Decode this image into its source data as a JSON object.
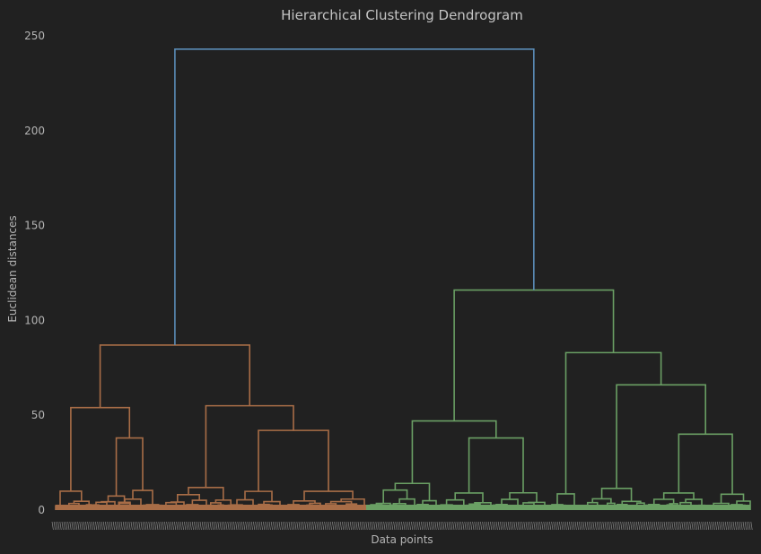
{
  "chart_data": {
    "type": "dendrogram",
    "title": "Hierarchical Clustering Dendrogram",
    "xlabel": "Data points",
    "ylabel": "Euclidean distances",
    "ylim": [
      0,
      250
    ],
    "yticks": [
      0,
      50,
      100,
      150,
      200,
      250
    ],
    "grid": false,
    "colors": {
      "background": "#212121",
      "root_link": "#5b8db8",
      "cluster_1": "#a86d47",
      "cluster_2": "#6a9f64",
      "leaf_labels": "#8c8c8c"
    },
    "merges": [
      {
        "name": "root",
        "height": 243,
        "color": "root_link",
        "children": [
          "c1",
          "c2"
        ]
      },
      {
        "name": "c1",
        "height": 87,
        "color": "cluster_1",
        "children": [
          "c1a",
          "c1b"
        ]
      },
      {
        "name": "c1a",
        "height": 54,
        "color": "cluster_1",
        "children": [
          "c1a1",
          "c1a2"
        ]
      },
      {
        "name": "c1a2",
        "height": 38,
        "color": "cluster_1"
      },
      {
        "name": "c1b",
        "height": 55,
        "color": "cluster_1",
        "children": [
          "c1b1",
          "c1b2"
        ]
      },
      {
        "name": "c1b2",
        "height": 42,
        "color": "cluster_1"
      },
      {
        "name": "c2",
        "height": 116,
        "color": "cluster_2",
        "children": [
          "c2a",
          "c2b"
        ]
      },
      {
        "name": "c2a",
        "height": 47,
        "color": "cluster_2",
        "children": [
          "c2a1",
          "c2a2"
        ]
      },
      {
        "name": "c2a2",
        "height": 38,
        "color": "cluster_2"
      },
      {
        "name": "c2b",
        "height": 83,
        "color": "cluster_2",
        "children": [
          "c2b1",
          "c2b2"
        ]
      },
      {
        "name": "c2b2",
        "height": 66,
        "color": "cluster_2"
      },
      {
        "name": "c2b2b",
        "height": 40,
        "color": "cluster_2"
      }
    ]
  }
}
